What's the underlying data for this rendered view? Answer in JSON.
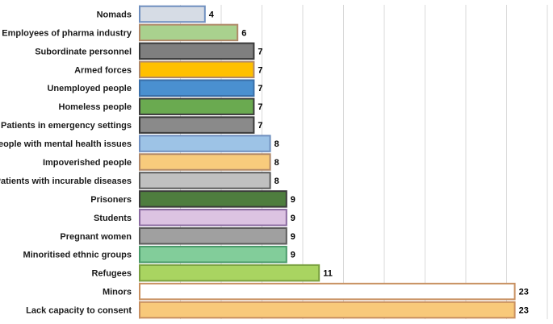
{
  "chart_data": {
    "type": "bar",
    "orientation": "horizontal",
    "categories": [
      "Nomads",
      "Employees of pharma industry",
      "Subordinate personnel",
      "Armed forces",
      "Unemployed people",
      "Homeless people",
      "Patients in emergency settings",
      "People with mental health issues",
      "Impoverished people",
      "Patients with incurable diseases",
      "Prisoners",
      "Students",
      "Pregnant women",
      "Minoritised ethnic groups",
      "Refugees",
      "Minors",
      "Lack capacity to consent"
    ],
    "values": [
      4,
      6,
      7,
      7,
      7,
      7,
      7,
      8,
      8,
      8,
      9,
      9,
      9,
      9,
      11,
      23,
      23
    ],
    "value_labels": [
      "4",
      "6",
      "7",
      "7",
      "7",
      "7",
      "7",
      "8",
      "8",
      "8",
      "9",
      "9",
      "9",
      "9",
      "11",
      "23",
      "23"
    ],
    "bar_fill_colors": [
      "#d6dce5",
      "#a9d18e",
      "#7f7f7f",
      "#ffc000",
      "#4a90d0",
      "#6aaa50",
      "#8a8a8a",
      "#9dc3e6",
      "#f8cb7c",
      "#c0c0c0",
      "#4e7d3e",
      "#dcc3e2",
      "#a0a0a0",
      "#82cd9a",
      "#a9d461",
      "#ffffff",
      "#f8c97a"
    ],
    "bar_edge_colors": [
      "#6f8fbf",
      "#b08868",
      "#3a3a3a",
      "#b08868",
      "#3a6fa8",
      "#3a3a3a",
      "#3a3a3a",
      "#6f8fbf",
      "#b08868",
      "#5a5a5a",
      "#3a3a3a",
      "#8a6aa0",
      "#5a5a5a",
      "#4a9a6a",
      "#7aa040",
      "#c89060",
      "#c89060"
    ],
    "xlim": [
      0,
      25
    ],
    "x_tick_step": 2.5,
    "grid": "vertical",
    "title": "",
    "xlabel": "",
    "ylabel": ""
  }
}
